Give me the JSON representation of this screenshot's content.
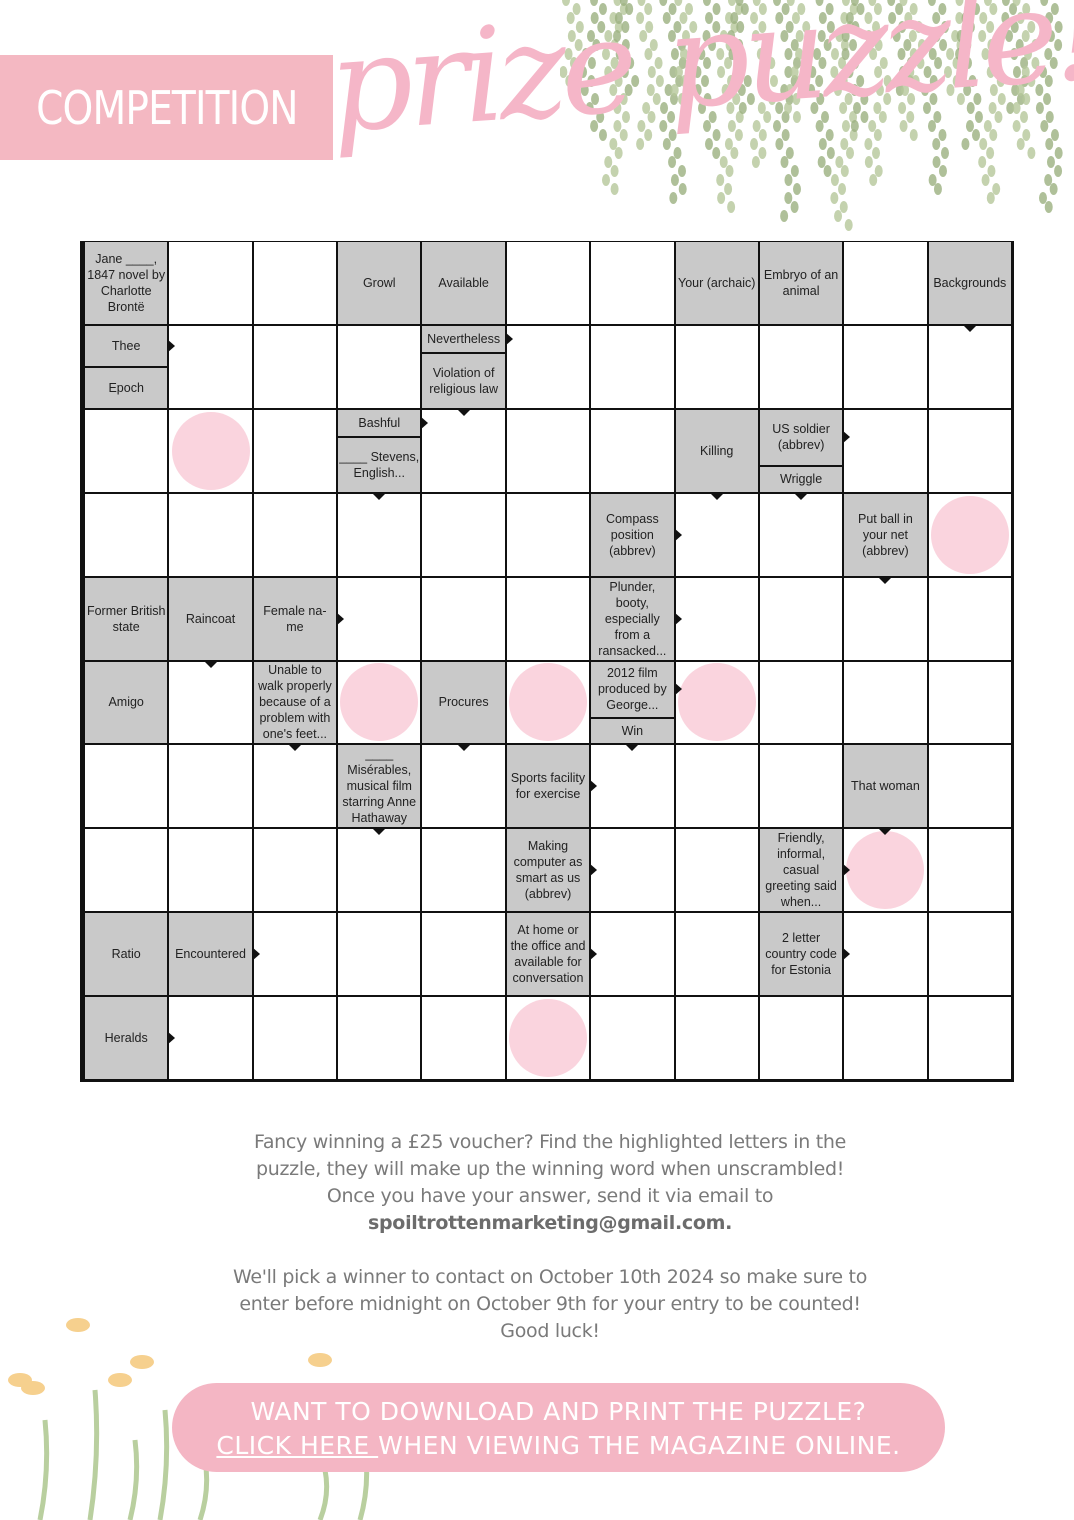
{
  "header": {
    "competition_label": "COMPETITION",
    "title": "prize puzzle!"
  },
  "colors": {
    "pink": "#f4b8c2",
    "highlight": "#fad4de",
    "clue_bg": "#c9c9c9",
    "foliage": "#9bb07f"
  },
  "puzzle": {
    "rows": [
      [
        {
          "clues": [
            {
              "t": "Jane ____, 1847 novel by Charlotte Brontë"
            }
          ]
        },
        null,
        null,
        {
          "clues": [
            {
              "t": "Growl"
            }
          ]
        },
        {
          "clues": [
            {
              "t": "Available"
            }
          ]
        },
        null,
        null,
        {
          "clues": [
            {
              "t": "Your (archaic)"
            }
          ]
        },
        {
          "clues": [
            {
              "t": "Embryo of an animal"
            }
          ]
        },
        null,
        {
          "clues": [
            {
              "t": "Backgrounds",
              "dir": "down"
            }
          ]
        }
      ],
      [
        {
          "even": true,
          "clues": [
            {
              "t": "Thee",
              "dir": "right"
            },
            {
              "t": "Epoch"
            }
          ]
        },
        null,
        null,
        null,
        {
          "clues": [
            {
              "t": "Nevertheless",
              "dir": "right"
            },
            {
              "t": "Violation of religious law",
              "dir": "down"
            }
          ]
        },
        null,
        null,
        null,
        null,
        null,
        null
      ],
      [
        null,
        {
          "hl": true
        },
        null,
        {
          "clues": [
            {
              "t": "Bashful",
              "dir": "right"
            },
            {
              "t": "____ Stevens, English...",
              "dir": "down"
            }
          ]
        },
        null,
        null,
        null,
        {
          "clues": [
            {
              "t": "Killing",
              "dir": "down"
            }
          ]
        },
        {
          "clues": [
            {
              "t": "US soldier (abbrev)",
              "dir": "right"
            },
            {
              "t": "Wriggle",
              "dir": "down"
            }
          ],
          "flip": true
        },
        null,
        null
      ],
      [
        null,
        null,
        null,
        null,
        null,
        null,
        {
          "clues": [
            {
              "t": "Compass position (abbrev)",
              "dir": "right"
            }
          ]
        },
        null,
        null,
        {
          "clues": [
            {
              "t": "Put ball in your net (abbrev)",
              "dir": "down"
            }
          ]
        },
        {
          "hl": true
        }
      ],
      [
        {
          "clues": [
            {
              "t": "Former British state"
            }
          ]
        },
        {
          "clues": [
            {
              "t": "Raincoat",
              "dir": "down"
            }
          ]
        },
        {
          "clues": [
            {
              "t": "Female na-me",
              "dir": "right"
            }
          ]
        },
        null,
        null,
        null,
        {
          "clues": [
            {
              "t": "Plunder, booty, especially from a ransacked...",
              "dir": "right"
            }
          ]
        },
        null,
        null,
        null,
        null
      ],
      [
        {
          "clues": [
            {
              "t": "Amigo"
            }
          ]
        },
        null,
        {
          "clues": [
            {
              "t": "Unable to walk properly because of a problem with one's feet...",
              "dir": "down"
            }
          ]
        },
        {
          "hl": true
        },
        {
          "clues": [
            {
              "t": "Procures",
              "dir": "down"
            }
          ]
        },
        {
          "hl": true
        },
        {
          "clues": [
            {
              "t": "2012 film produced by George...",
              "dir": "right"
            },
            {
              "t": "Win",
              "dir": "down"
            }
          ],
          "flip": true
        },
        {
          "hl": true
        },
        null,
        null,
        null
      ],
      [
        null,
        null,
        null,
        {
          "clues": [
            {
              "t": "____ Misérables, musical film starring Anne Hathaway",
              "dir": "down"
            }
          ]
        },
        null,
        {
          "clues": [
            {
              "t": "Sports facility for exercise",
              "dir": "right"
            }
          ]
        },
        null,
        null,
        null,
        {
          "clues": [
            {
              "t": "That woman",
              "dir": "down"
            }
          ]
        },
        null
      ],
      [
        null,
        null,
        null,
        null,
        null,
        {
          "clues": [
            {
              "t": "Making computer as smart as us (abbrev)",
              "dir": "right"
            }
          ]
        },
        null,
        null,
        {
          "clues": [
            {
              "t": "Friendly, informal, casual greeting said when...",
              "dir": "right"
            }
          ]
        },
        {
          "hl": true
        },
        null
      ],
      [
        {
          "clues": [
            {
              "t": "Ratio"
            }
          ]
        },
        {
          "clues": [
            {
              "t": "Encountered",
              "dir": "right"
            }
          ]
        },
        null,
        null,
        null,
        {
          "clues": [
            {
              "t": "At home or the office and available for conversation",
              "dir": "right"
            }
          ]
        },
        null,
        null,
        {
          "clues": [
            {
              "t": "2 letter country code for Estonia",
              "dir": "right"
            }
          ]
        },
        null,
        null
      ],
      [
        {
          "clues": [
            {
              "t": "Heralds",
              "dir": "right"
            }
          ]
        },
        null,
        null,
        null,
        null,
        {
          "hl": true
        },
        null,
        null,
        null,
        null,
        null
      ]
    ]
  },
  "info": {
    "line1": "Fancy winning a £25 voucher? Find the highlighted letters in the",
    "line2": "puzzle, they will make up the winning word when unscrambled!",
    "line3": "Once you have your answer, send it via email to",
    "email": "spoiltrottenmarketing@gmail.com.",
    "line5": "We'll pick a winner to contact on October 10th 2024 so make sure to",
    "line6": "enter before midnight on October 9th for your entry to be counted!",
    "line7": "Good luck!"
  },
  "cta": {
    "line1": "WANT TO DOWNLOAD AND PRINT THE PUZZLE?",
    "link": "CLICK HERE ",
    "line2_rest": "WHEN VIEWING THE MAGAZINE ONLINE."
  }
}
